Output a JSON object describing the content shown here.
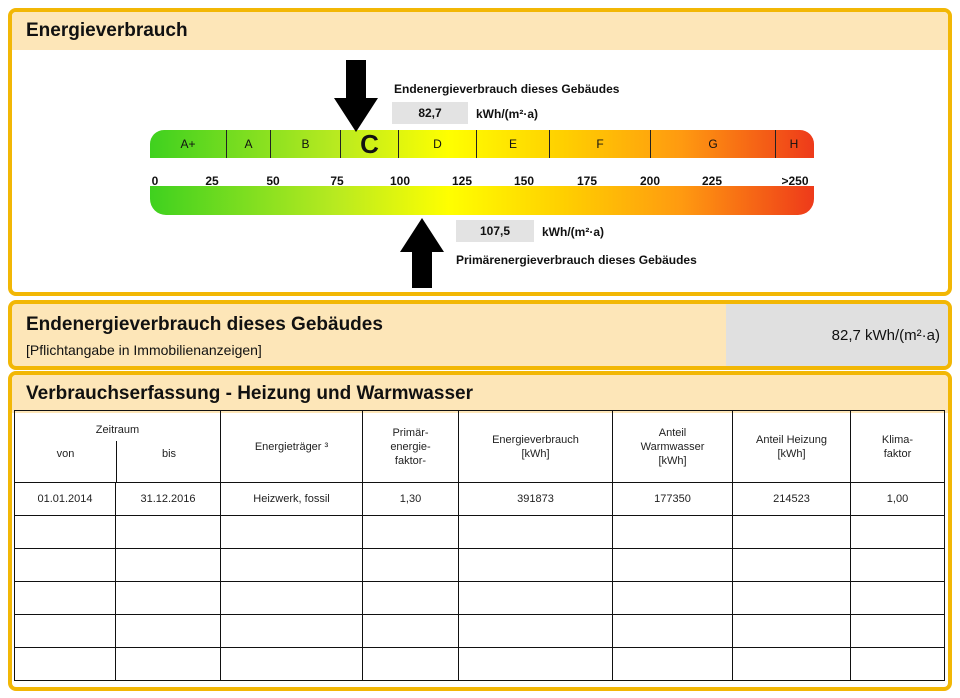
{
  "energy_panel": {
    "title": "Energieverbrauch",
    "end_label": "Endenergieverbrauch dieses Gebäudes",
    "end_value": "82,7",
    "end_unit": "kWh/(m²·a)",
    "primary_label": "Primärenergieverbrauch dieses Gebäudes",
    "primary_value": "107,5",
    "primary_unit": "kWh/(m²·a)",
    "classes": [
      "A+",
      "A",
      "B",
      "C",
      "D",
      "E",
      "F",
      "G",
      "H"
    ],
    "active_class": "C",
    "ticks": [
      "0",
      "25",
      "50",
      "75",
      "100",
      "125",
      "150",
      "175",
      "200",
      "225",
      ">250"
    ],
    "colors": {
      "green": "#3fd11f",
      "yellow": "#ffff00",
      "red": "#ee3a1a",
      "border": "#f2b705"
    }
  },
  "summary_panel": {
    "title": "Endenergieverbrauch dieses Gebäudes",
    "subtitle": "[Pflichtangabe in Immobilienanzeigen]",
    "value": "82,7 kWh/(m²·a)"
  },
  "table_panel": {
    "title": "Verbrauchserfassung - Heizung und Warmwasser",
    "headers": {
      "zeitraum": "Zeitraum",
      "von": "von",
      "bis": "bis",
      "energietraeger": "Energieträger ³",
      "primaer": "Primär-\nenergie-\nfaktor-",
      "verbrauch": "Energieverbrauch\n[kWh]",
      "warmwasser": "Anteil\nWarmwasser\n[kWh]",
      "heizung": "Anteil Heizung\n[kWh]",
      "klima": "Klima-\nfaktor"
    },
    "rows": [
      [
        "01.01.2014",
        "31.12.2016",
        "Heizwerk, fossil",
        "1,30",
        "391873",
        "177350",
        "214523",
        "1,00"
      ]
    ],
    "empty_rows": 5
  }
}
